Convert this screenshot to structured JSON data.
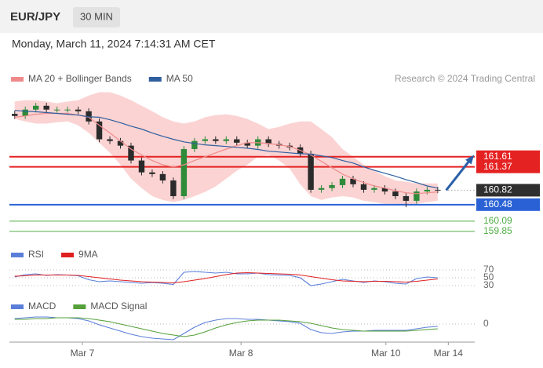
{
  "header": {
    "symbol": "EUR/JPY",
    "timeframe": "30 MIN",
    "timestamp": "Monday, March 11, 2024 7:14:31 AM CET"
  },
  "chart_data": [
    {
      "type": "candlestick",
      "attribution": "Research © 2024 Trading Central",
      "xlim": [
        0,
        44
      ],
      "xticks": [
        {
          "value": 6.9,
          "label": "Mar 7"
        },
        {
          "value": 21.9,
          "label": "Mar 8"
        },
        {
          "value": 35.6,
          "label": "Mar 10"
        },
        {
          "value": 41.5,
          "label": "Mar 14"
        }
      ],
      "ylim": [
        159.7,
        163.25
      ],
      "up_color": "#2e8b3a",
      "down_color": "#2b2b2b",
      "open": [
        162.62,
        162.57,
        162.72,
        162.81,
        162.72,
        162.72,
        162.72,
        162.68,
        162.44,
        162.02,
        161.98,
        161.87,
        161.52,
        161.24,
        161.2,
        161.05,
        160.68,
        161.79,
        161.98,
        162.02,
        161.98,
        162.02,
        161.94,
        161.87,
        162.02,
        161.91,
        161.87,
        161.83,
        161.68,
        160.83,
        160.87,
        160.94,
        161.09,
        160.96,
        160.83,
        160.87,
        160.79,
        160.68,
        160.57,
        160.79,
        160.83
      ],
      "high": [
        162.69,
        162.79,
        162.88,
        162.88,
        162.79,
        162.79,
        162.79,
        162.75,
        162.51,
        162.09,
        162.05,
        161.94,
        161.59,
        161.31,
        161.27,
        161.12,
        161.86,
        162.05,
        162.09,
        162.09,
        162.09,
        162.09,
        162.01,
        162.09,
        162.09,
        161.98,
        161.94,
        161.9,
        161.75,
        160.94,
        161.01,
        161.16,
        161.16,
        161.03,
        160.94,
        160.94,
        160.86,
        160.75,
        160.86,
        160.9,
        160.9
      ],
      "low": [
        162.5,
        162.5,
        162.65,
        162.65,
        162.65,
        162.65,
        162.61,
        162.37,
        161.95,
        161.91,
        161.8,
        161.45,
        161.17,
        161.13,
        160.98,
        160.61,
        160.61,
        161.72,
        161.91,
        161.91,
        161.91,
        161.87,
        161.8,
        161.8,
        161.84,
        161.8,
        161.76,
        161.61,
        160.76,
        160.76,
        160.8,
        160.87,
        160.89,
        160.76,
        160.76,
        160.72,
        160.61,
        160.42,
        160.5,
        160.72,
        160.75
      ],
      "close": [
        162.57,
        162.72,
        162.81,
        162.72,
        162.72,
        162.72,
        162.68,
        162.44,
        162.02,
        161.98,
        161.87,
        161.52,
        161.24,
        161.2,
        161.05,
        160.68,
        161.79,
        161.98,
        162.02,
        161.98,
        162.02,
        161.94,
        161.87,
        162.02,
        161.91,
        161.87,
        161.83,
        161.68,
        160.83,
        160.87,
        160.94,
        161.09,
        160.96,
        160.83,
        160.87,
        160.79,
        160.68,
        160.57,
        160.79,
        160.83,
        160.82
      ],
      "series": [
        {
          "name": "MA 20 + Bollinger Bands",
          "color": "#f08a8a",
          "band_color": "#fbd3d3",
          "values": [
            162.54,
            162.57,
            162.61,
            162.63,
            162.63,
            162.63,
            162.59,
            162.54,
            162.35,
            162.17,
            161.98,
            161.79,
            161.65,
            161.52,
            161.42,
            161.37,
            161.42,
            161.52,
            161.61,
            161.7,
            161.79,
            161.87,
            161.94,
            161.94,
            161.92,
            161.89,
            161.85,
            161.76,
            161.65,
            161.5,
            161.35,
            161.2,
            161.09,
            161.0,
            160.92,
            160.87,
            160.81,
            160.76,
            160.74,
            160.76,
            160.78
          ],
          "band_upper": [
            162.91,
            162.94,
            162.94,
            162.91,
            162.87,
            162.91,
            162.94,
            163.05,
            163.13,
            163.13,
            163.05,
            162.94,
            162.81,
            162.68,
            162.54,
            162.44,
            162.39,
            162.44,
            162.54,
            162.59,
            162.61,
            162.57,
            162.5,
            162.39,
            162.26,
            162.31,
            162.39,
            162.44,
            162.44,
            162.26,
            162.07,
            161.79,
            161.61,
            161.42,
            161.28,
            161.15,
            161.05,
            161.02,
            160.98,
            160.98,
            160.98
          ],
          "band_lower": [
            162.5,
            162.44,
            162.39,
            162.39,
            162.42,
            162.44,
            162.35,
            162.17,
            161.94,
            161.7,
            161.42,
            161.09,
            160.87,
            160.68,
            160.59,
            160.54,
            160.59,
            160.68,
            160.78,
            160.91,
            161.09,
            161.28,
            161.42,
            161.61,
            161.65,
            161.52,
            161.33,
            160.96,
            160.68,
            160.59,
            160.65,
            160.68,
            160.65,
            160.57,
            160.54,
            160.5,
            160.5,
            160.46,
            160.5,
            160.54,
            160.57
          ]
        },
        {
          "name": "MA 50",
          "color": "#2f5f9e",
          "values": [
            162.7,
            162.68,
            162.67,
            162.65,
            162.63,
            162.61,
            162.59,
            162.55,
            162.54,
            162.48,
            162.41,
            162.33,
            162.26,
            162.17,
            162.09,
            162.02,
            161.96,
            161.92,
            161.89,
            161.87,
            161.85,
            161.83,
            161.81,
            161.78,
            161.74,
            161.72,
            161.7,
            161.68,
            161.67,
            161.63,
            161.59,
            161.52,
            161.46,
            161.37,
            161.29,
            161.22,
            161.15,
            161.07,
            161.0,
            160.92,
            160.87
          ]
        }
      ],
      "levels": [
        {
          "value": 161.61,
          "color": "#e52222",
          "style": "box"
        },
        {
          "value": 161.37,
          "color": "#e52222",
          "style": "box"
        },
        {
          "value": 160.82,
          "color": "#2f2f2f",
          "style": "current"
        },
        {
          "value": 160.48,
          "color": "#2a62d6",
          "style": "box"
        },
        {
          "value": 160.09,
          "color": "#4fae45",
          "style": "text"
        },
        {
          "value": 159.85,
          "color": "#4fae45",
          "style": "text"
        }
      ],
      "forecast_color": "#2a5fa8"
    },
    {
      "type": "line",
      "xlim": [
        0,
        44
      ],
      "ylim": [
        20,
        80
      ],
      "yticks": [
        70,
        50,
        30
      ],
      "series": [
        {
          "name": "RSI",
          "color": "#5b7fd9",
          "values": [
            52,
            58,
            60,
            56,
            58,
            57,
            55,
            45,
            40,
            42,
            40,
            38,
            36,
            38,
            36,
            33,
            64,
            66,
            64,
            62,
            64,
            60,
            60,
            62,
            58,
            57,
            56,
            50,
            30,
            34,
            40,
            46,
            42,
            38,
            42,
            40,
            36,
            34,
            48,
            52,
            50
          ]
        },
        {
          "name": "9MA",
          "color": "#e02020",
          "values": [
            54,
            55,
            57,
            57,
            57,
            57,
            56,
            53,
            50,
            47,
            44,
            42,
            40,
            39,
            38,
            37,
            40,
            44,
            48,
            53,
            58,
            62,
            63,
            62,
            61,
            60,
            59,
            57,
            53,
            49,
            45,
            42,
            41,
            40,
            41,
            41,
            40,
            39,
            41,
            44,
            47
          ]
        }
      ]
    },
    {
      "type": "line",
      "xlim": [
        0,
        44
      ],
      "ylim": [
        -0.25,
        0.15
      ],
      "yticks": [
        0
      ],
      "series": [
        {
          "name": "MACD",
          "color": "#5b7fd9",
          "values": [
            0.07,
            0.08,
            0.09,
            0.09,
            0.08,
            0.08,
            0.07,
            0.04,
            -0.01,
            -0.05,
            -0.09,
            -0.13,
            -0.16,
            -0.18,
            -0.19,
            -0.2,
            -0.12,
            -0.04,
            0.02,
            0.05,
            0.07,
            0.07,
            0.06,
            0.06,
            0.05,
            0.04,
            0.03,
            0.01,
            -0.07,
            -0.11,
            -0.12,
            -0.1,
            -0.09,
            -0.09,
            -0.08,
            -0.08,
            -0.08,
            -0.08,
            -0.06,
            -0.04,
            -0.03
          ]
        },
        {
          "name": "MACD Signal",
          "color": "#55a03a",
          "values": [
            0.06,
            0.06,
            0.07,
            0.07,
            0.08,
            0.08,
            0.08,
            0.07,
            0.05,
            0.03,
            0.0,
            -0.03,
            -0.06,
            -0.09,
            -0.12,
            -0.14,
            -0.16,
            -0.14,
            -0.1,
            -0.05,
            -0.01,
            0.02,
            0.04,
            0.05,
            0.05,
            0.05,
            0.04,
            0.03,
            0.01,
            -0.02,
            -0.05,
            -0.07,
            -0.08,
            -0.09,
            -0.09,
            -0.09,
            -0.09,
            -0.09,
            -0.08,
            -0.07,
            -0.06
          ]
        }
      ]
    }
  ]
}
